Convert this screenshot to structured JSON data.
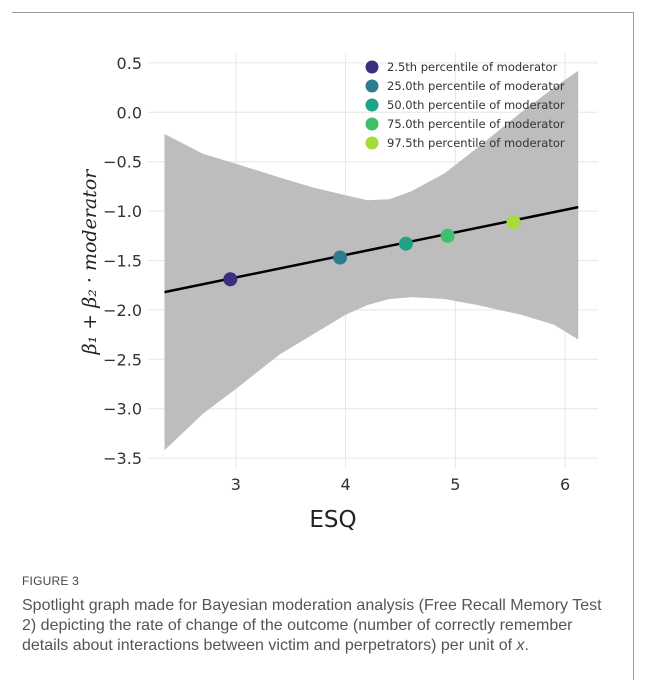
{
  "figure": {
    "label": "FIGURE 3",
    "caption_before": "Spotlight graph made for Bayesian moderation analysis (Free Recall Memory Test 2) depicting the rate of change of the outcome (number of correctly remember details about interactions between victim and perpetrators) per unit of ",
    "caption_var": "x",
    "caption_after": "."
  },
  "chart_data": {
    "type": "line",
    "xlabel": "ESQ",
    "ylabel": "β₁ + β₂ · moderator",
    "xlim": [
      2.2,
      6.3
    ],
    "ylim": [
      -3.6,
      0.6
    ],
    "x_ticks": [
      3,
      4,
      5,
      6
    ],
    "x_tick_labels": [
      "3",
      "4",
      "5",
      "6"
    ],
    "y_ticks": [
      0.5,
      0.0,
      -0.5,
      -1.0,
      -1.5,
      -2.0,
      -2.5,
      -3.0,
      -3.5
    ],
    "y_tick_labels": [
      "0.5",
      "0.0",
      "−0.5",
      "−1.0",
      "−1.5",
      "−2.0",
      "−2.5",
      "−3.0",
      "−3.5"
    ],
    "grid": true,
    "legend_position": "top-right",
    "line": {
      "x": [
        2.35,
        6.12
      ],
      "y": [
        -1.82,
        -0.96
      ],
      "color": "#000000"
    },
    "band": {
      "x": [
        2.35,
        2.7,
        3.0,
        3.4,
        3.7,
        4.0,
        4.2,
        4.4,
        4.6,
        4.9,
        5.2,
        5.6,
        5.9,
        6.12
      ],
      "upper": [
        -0.22,
        -0.42,
        -0.52,
        -0.66,
        -0.76,
        -0.84,
        -0.89,
        -0.88,
        -0.8,
        -0.62,
        -0.36,
        0.0,
        0.25,
        0.42
      ],
      "lower": [
        -3.42,
        -3.05,
        -2.8,
        -2.45,
        -2.25,
        -2.05,
        -1.95,
        -1.89,
        -1.87,
        -1.89,
        -1.95,
        -2.05,
        -2.15,
        -2.3
      ],
      "color": "#bdbdbd"
    },
    "series": [
      {
        "name": "2.5th percentile of moderator",
        "x": [
          2.95
        ],
        "y": [
          -1.69
        ],
        "color": "#3b2f7e"
      },
      {
        "name": "25.0th percentile of moderator",
        "x": [
          3.95
        ],
        "y": [
          -1.47
        ],
        "color": "#2c7b8e"
      },
      {
        "name": "50.0th percentile of moderator",
        "x": [
          4.55
        ],
        "y": [
          -1.33
        ],
        "color": "#1fa388"
      },
      {
        "name": "75.0th percentile of moderator",
        "x": [
          4.93
        ],
        "y": [
          -1.25
        ],
        "color": "#3ec06a"
      },
      {
        "name": "97.5th percentile of moderator",
        "x": [
          5.53
        ],
        "y": [
          -1.11
        ],
        "color": "#a6dc3a"
      }
    ]
  }
}
